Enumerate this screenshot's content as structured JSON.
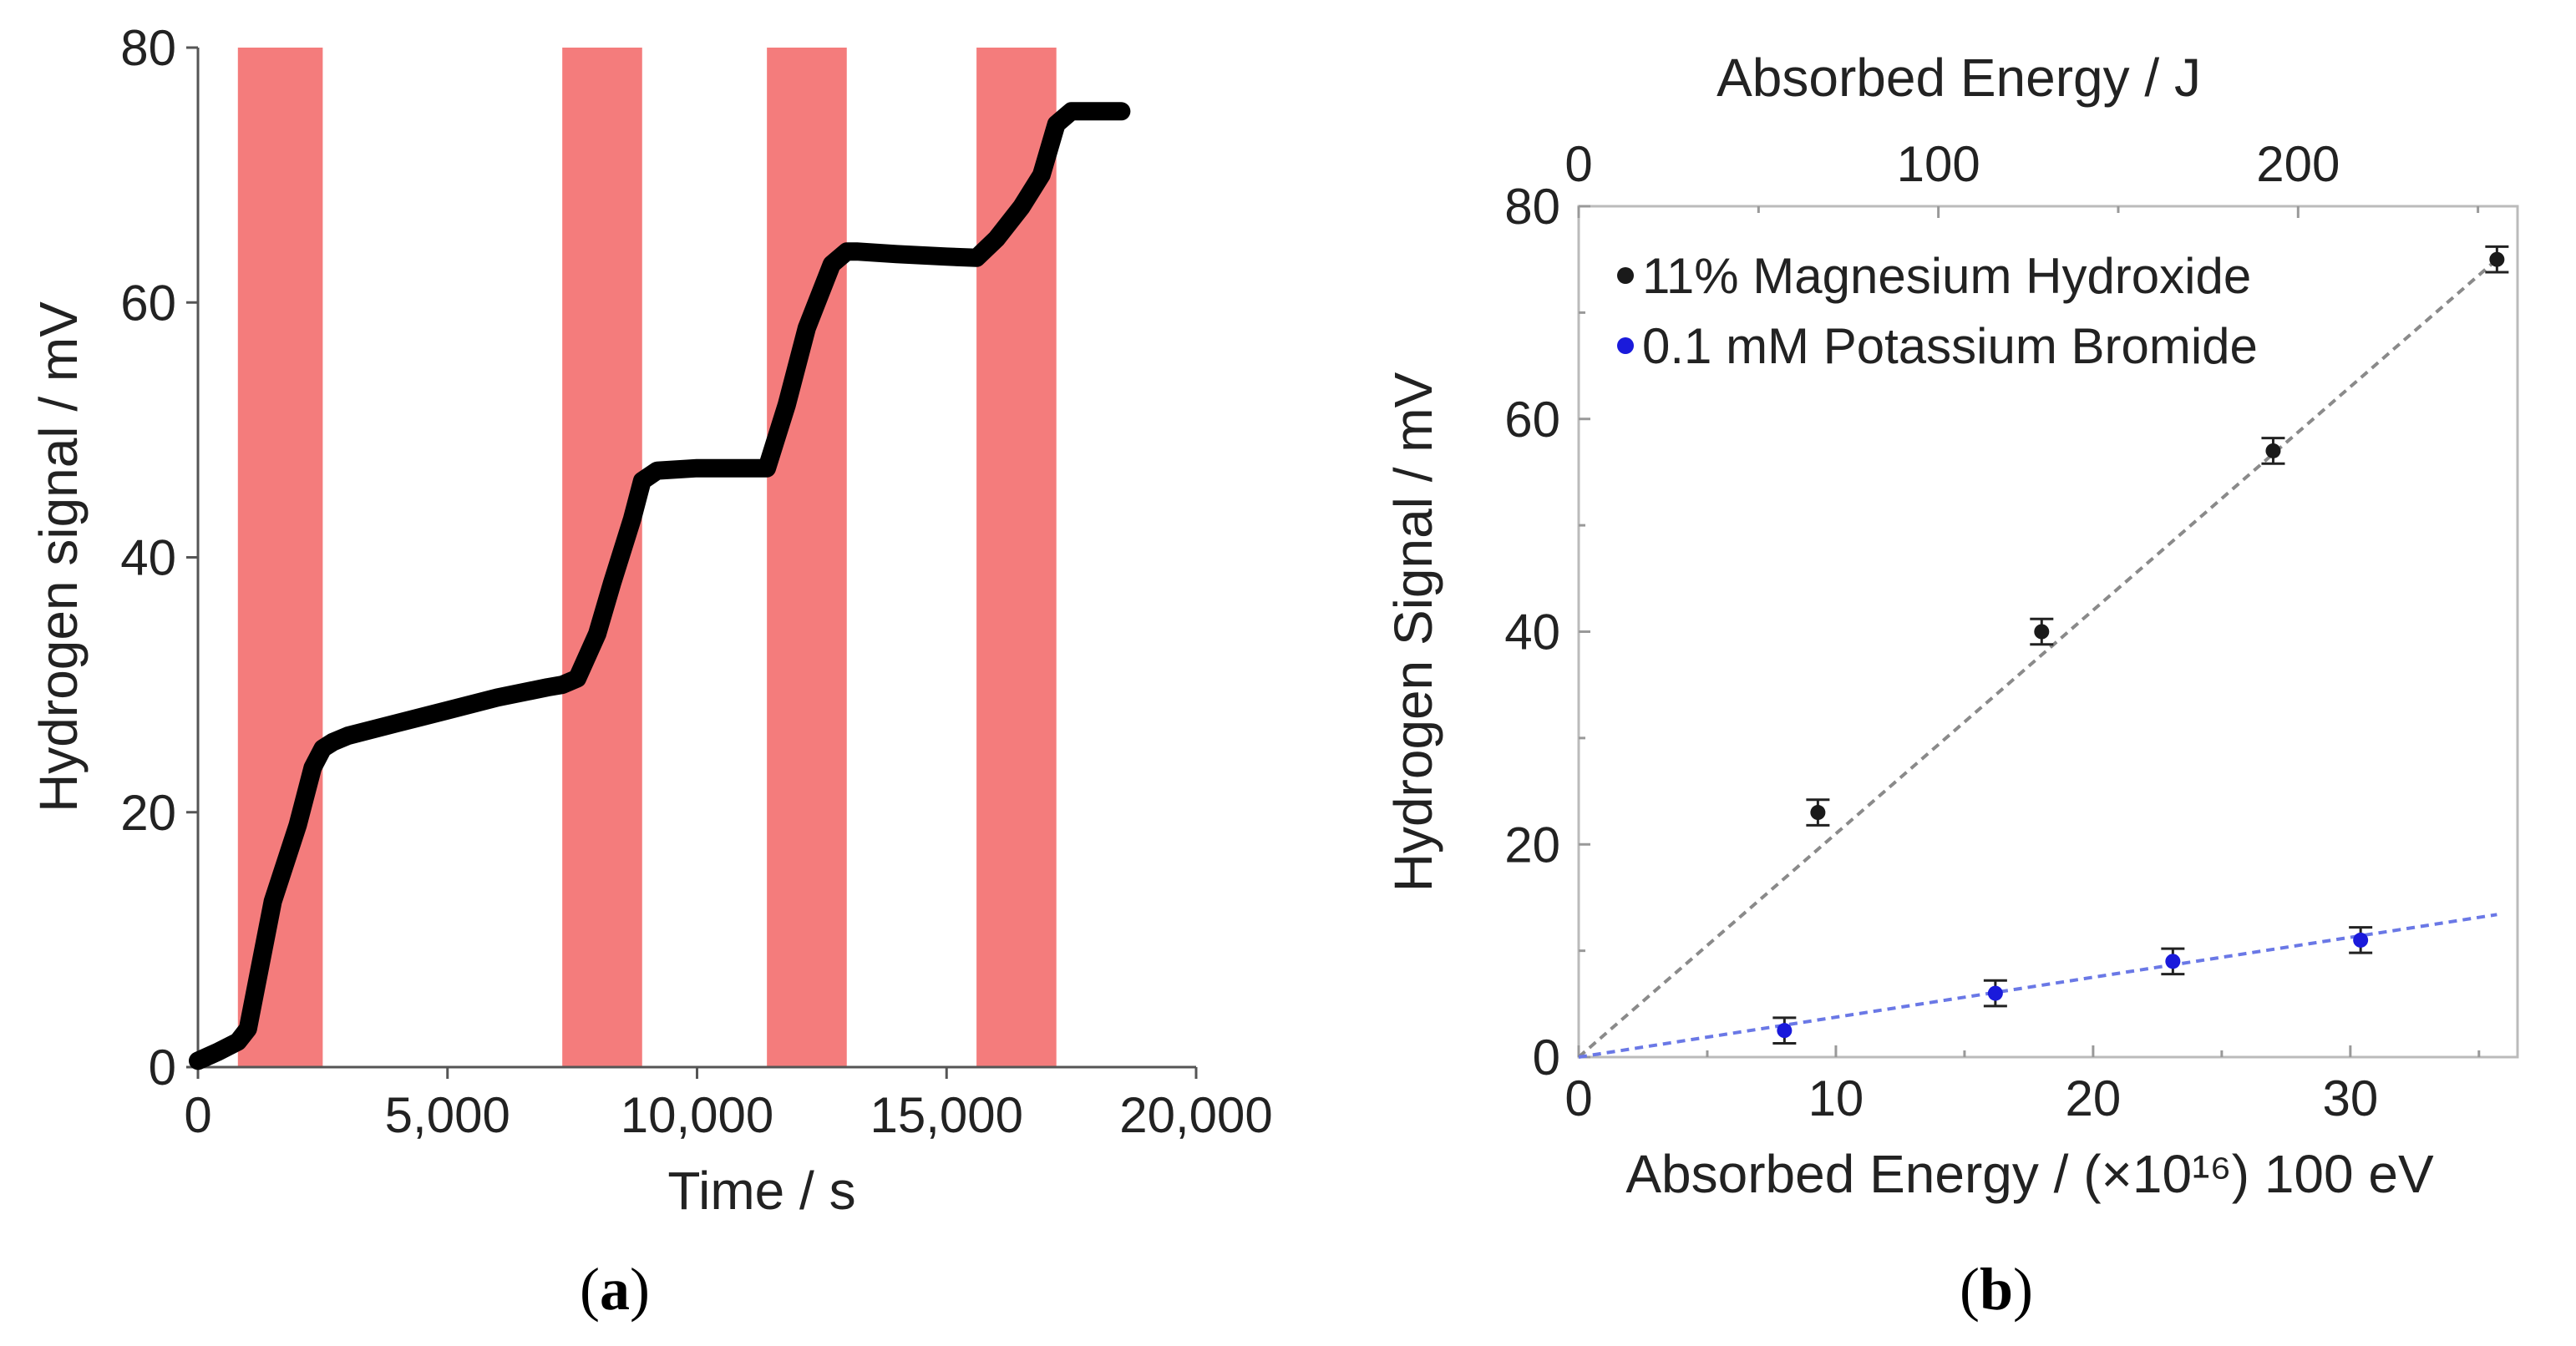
{
  "chart_data": [
    {
      "type": "line",
      "panel_label": "a",
      "xlabel": "Time / s",
      "ylabel": "Hydrogen signal / mV",
      "xlim": [
        0,
        20000
      ],
      "ylim": [
        0,
        80
      ],
      "x_ticks": [
        0,
        5000,
        10000,
        15000,
        20000
      ],
      "x_tick_labels": [
        "0",
        "5,000",
        "10,000",
        "15,000",
        "20,000"
      ],
      "y_ticks": [
        0,
        20,
        40,
        60,
        80
      ],
      "y_tick_labels": [
        "0",
        "20",
        "40",
        "60",
        "80"
      ],
      "irradiation_bands": [
        [
          800,
          2500
        ],
        [
          7300,
          8900
        ],
        [
          11400,
          13000
        ],
        [
          15600,
          17200
        ]
      ],
      "band_color": "#f47c7c",
      "series": [
        {
          "name": "Hydrogen signal",
          "color": "#000000",
          "x": [
            0,
            400,
            800,
            1000,
            1200,
            1500,
            2000,
            2300,
            2500,
            2700,
            3000,
            4000,
            5000,
            6000,
            7000,
            7300,
            7600,
            8000,
            8300,
            8700,
            8900,
            9200,
            10000,
            11000,
            11400,
            11800,
            12200,
            12700,
            13000,
            13200,
            14000,
            15000,
            15600,
            16000,
            16500,
            16900,
            17200,
            17500,
            18500
          ],
          "y": [
            0.5,
            1.2,
            2.0,
            3.0,
            7.0,
            13.0,
            19.0,
            23.5,
            25.0,
            25.5,
            26.0,
            27.0,
            28.0,
            29.0,
            29.8,
            30.0,
            30.5,
            34.0,
            38.0,
            43.0,
            46.0,
            46.8,
            47.0,
            47.0,
            47.0,
            52.0,
            58.0,
            63.0,
            64.0,
            64.0,
            63.8,
            63.6,
            63.5,
            65.0,
            67.5,
            70.0,
            74.0,
            75.0,
            75.0
          ]
        }
      ]
    },
    {
      "type": "scatter",
      "panel_label": "b",
      "xlabel": "Absorbed Energy / (×10¹⁶) 100 eV",
      "ylabel": "Hydrogen Signal / mV",
      "top_xlabel": "Absorbed Energy / J",
      "xlim": [
        0,
        36.5
      ],
      "ylim": [
        0,
        80
      ],
      "x_ticks": [
        0,
        10,
        20,
        30
      ],
      "x_tick_labels": [
        "0",
        "10",
        "20",
        "30"
      ],
      "top_x_ticks": [
        0,
        100,
        200
      ],
      "top_x_tick_labels": [
        "0",
        "100",
        "200"
      ],
      "top_xlim": [
        0,
        261
      ],
      "y_ticks": [
        0,
        20,
        40,
        60,
        80
      ],
      "y_tick_labels": [
        "0",
        "20",
        "40",
        "60",
        "80"
      ],
      "legend_position": "top-left",
      "series": [
        {
          "name": "11% Magnesium Hydroxide",
          "color": "#1a1a1a",
          "fit_color": "#8a8a8a",
          "x": [
            9.3,
            18.0,
            27.0,
            35.7
          ],
          "y": [
            23.0,
            40.0,
            57.0,
            75.0
          ],
          "err": [
            1.2,
            1.2,
            1.2,
            1.2
          ],
          "fit": [
            [
              0,
              0
            ],
            [
              35.7,
              75.0
            ]
          ]
        },
        {
          "name": "0.1 mM Potassium Bromide",
          "color": "#1a1adb",
          "fit_color": "#6a78e6",
          "x": [
            8.0,
            16.2,
            23.1,
            30.4
          ],
          "y": [
            2.5,
            6.0,
            9.0,
            11.0
          ],
          "err": [
            1.2,
            1.2,
            1.2,
            1.2
          ],
          "fit": [
            [
              0,
              0
            ],
            [
              35.7,
              13.4
            ]
          ]
        }
      ]
    }
  ]
}
